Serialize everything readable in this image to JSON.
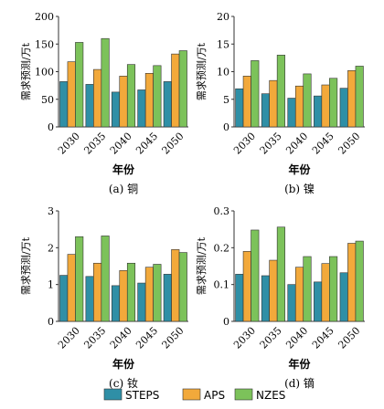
{
  "colors": {
    "STEPS": "#2f8fa6",
    "APS": "#f2a93b",
    "NZES": "#7cc25a"
  },
  "legend": {
    "items": [
      {
        "key": "STEPS",
        "label": "STEPS"
      },
      {
        "key": "APS",
        "label": "APS"
      },
      {
        "key": "NZES",
        "label": "NZES"
      }
    ]
  },
  "chart_data": [
    {
      "id": "a",
      "type": "bar",
      "title": "(a) 铜",
      "xlabel": "年份",
      "ylabel": "需求预测/万t",
      "categories": [
        "2030",
        "2035",
        "2040",
        "2045",
        "2050"
      ],
      "ylim": [
        0,
        200
      ],
      "yticks": [
        "0",
        "50",
        "100",
        "150",
        "200"
      ],
      "series": [
        {
          "name": "STEPS",
          "values": [
            82,
            77,
            63,
            67,
            82
          ]
        },
        {
          "name": "APS",
          "values": [
            118,
            104,
            92,
            97,
            132
          ]
        },
        {
          "name": "NZES",
          "values": [
            153,
            160,
            113,
            111,
            138
          ]
        }
      ]
    },
    {
      "id": "b",
      "type": "bar",
      "title": "(b) 镍",
      "xlabel": "年份",
      "ylabel": "需求预测/万t",
      "categories": [
        "2030",
        "2035",
        "2040",
        "2045",
        "2050"
      ],
      "ylim": [
        0,
        20
      ],
      "yticks": [
        "0",
        "5",
        "10",
        "15",
        "20"
      ],
      "series": [
        {
          "name": "STEPS",
          "values": [
            6.9,
            6.0,
            5.2,
            5.6,
            7.0
          ]
        },
        {
          "name": "APS",
          "values": [
            9.2,
            8.4,
            7.4,
            7.6,
            10.2
          ]
        },
        {
          "name": "NZES",
          "values": [
            12.0,
            13.0,
            9.6,
            8.8,
            11.0
          ]
        }
      ]
    },
    {
      "id": "c",
      "type": "bar",
      "title": "(c) 钕",
      "xlabel": "年份",
      "ylabel": "需求预测/万t",
      "categories": [
        "2030",
        "2035",
        "2040",
        "2045",
        "2050"
      ],
      "ylim": [
        0,
        3
      ],
      "yticks": [
        "0",
        "1",
        "2",
        "3"
      ],
      "series": [
        {
          "name": "STEPS",
          "values": [
            1.25,
            1.22,
            0.97,
            1.04,
            1.28
          ]
        },
        {
          "name": "APS",
          "values": [
            1.82,
            1.58,
            1.38,
            1.47,
            1.95
          ]
        },
        {
          "name": "NZES",
          "values": [
            2.3,
            2.32,
            1.58,
            1.55,
            1.87
          ]
        }
      ]
    },
    {
      "id": "d",
      "type": "bar",
      "title": "(d) 镝",
      "xlabel": "年份",
      "ylabel": "需求预测/万t",
      "categories": [
        "2030",
        "2035",
        "2040",
        "2045",
        "2050"
      ],
      "ylim": [
        0,
        0.3
      ],
      "yticks": [
        "0",
        "0.1",
        "0.2",
        "0.3"
      ],
      "series": [
        {
          "name": "STEPS",
          "values": [
            0.128,
            0.124,
            0.1,
            0.107,
            0.132
          ]
        },
        {
          "name": "APS",
          "values": [
            0.19,
            0.166,
            0.147,
            0.157,
            0.212
          ]
        },
        {
          "name": "NZES",
          "values": [
            0.248,
            0.256,
            0.176,
            0.176,
            0.218
          ]
        }
      ]
    }
  ]
}
